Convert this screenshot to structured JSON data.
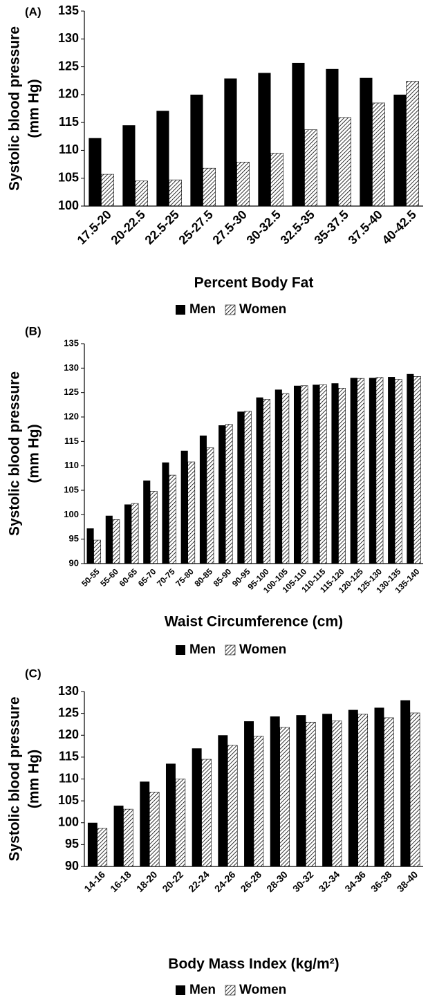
{
  "chart_data": [
    {
      "type": "bar",
      "label": "(A)",
      "ylabel": [
        "Systolic blood pressure",
        "(mm Hg)"
      ],
      "xlabel": "Percent Body Fat",
      "categories": [
        "17.5-20",
        "20-22.5",
        "22.5-25",
        "25-27.5",
        "27.5-30",
        "30-32.5",
        "32.5-35",
        "35-37.5",
        "37.5-40",
        "40-42.5"
      ],
      "series": [
        {
          "name": "Men",
          "color": "#000000",
          "hatch": false,
          "values": [
            112.2,
            114.5,
            117.1,
            120.0,
            122.9,
            123.9,
            125.7,
            124.6,
            123.0,
            120.0
          ]
        },
        {
          "name": "Women",
          "color": "#000000",
          "hatch": true,
          "values": [
            105.7,
            104.5,
            104.7,
            106.8,
            107.9,
            109.5,
            113.7,
            115.9,
            118.5,
            122.4
          ]
        }
      ],
      "ylim": [
        100,
        135
      ],
      "yticks": [
        100,
        105,
        110,
        115,
        120,
        125,
        130,
        135
      ],
      "grid": false,
      "legend": "bottom"
    },
    {
      "type": "bar",
      "label": "(B)",
      "ylabel": [
        "Systolic blood pressure",
        "(mm Hg)"
      ],
      "xlabel": "Waist Circumference (cm)",
      "categories": [
        "50-55",
        "55-60",
        "60-65",
        "65-70",
        "70-75",
        "75-80",
        "80-85",
        "85-90",
        "90-95",
        "95-100",
        "100-105",
        "105-110",
        "110-115",
        "115-120",
        "120-125",
        "125-130",
        "130-135",
        "135-140"
      ],
      "series": [
        {
          "name": "Men",
          "color": "#000000",
          "hatch": false,
          "values": [
            97.2,
            99.8,
            102.1,
            107.0,
            110.7,
            113.1,
            116.2,
            118.3,
            121.1,
            124.0,
            125.6,
            126.4,
            126.6,
            126.9,
            128.0,
            128.0,
            128.2,
            128.8
          ]
        },
        {
          "name": "Women",
          "color": "#000000",
          "hatch": true,
          "values": [
            94.8,
            99.0,
            102.3,
            104.8,
            108.1,
            110.8,
            113.7,
            118.5,
            121.2,
            123.6,
            124.8,
            126.4,
            126.6,
            125.9,
            127.9,
            128.1,
            127.7,
            128.3
          ]
        }
      ],
      "ylim": [
        90,
        135
      ],
      "yticks": [
        90,
        95,
        100,
        105,
        110,
        115,
        120,
        125,
        130,
        135
      ],
      "grid": false,
      "legend": "bottom"
    },
    {
      "type": "bar",
      "label": "(C)",
      "ylabel": [
        "Systolic blood pressure",
        "(mm Hg)"
      ],
      "xlabel": "Body Mass Index (kg/m²)",
      "categories": [
        "14-16",
        "16-18",
        "18-20",
        "20-22",
        "22-24",
        "24-26",
        "26-28",
        "28-30",
        "30-32",
        "32-34",
        "34-36",
        "36-38",
        "38-40"
      ],
      "series": [
        {
          "name": "Men",
          "color": "#000000",
          "hatch": false,
          "values": [
            100.0,
            103.9,
            109.4,
            113.5,
            117.0,
            120.0,
            123.2,
            124.3,
            124.6,
            124.9,
            125.8,
            126.3,
            128.0
          ]
        },
        {
          "name": "Women",
          "color": "#000000",
          "hatch": true,
          "values": [
            98.7,
            103.1,
            107.0,
            110.0,
            114.5,
            117.7,
            119.8,
            121.8,
            123.0,
            123.3,
            124.8,
            124.0,
            125.1
          ]
        }
      ],
      "ylim": [
        90,
        130
      ],
      "yticks": [
        90,
        95,
        100,
        105,
        110,
        115,
        120,
        125,
        130
      ],
      "grid": false,
      "legend": "bottom"
    }
  ]
}
